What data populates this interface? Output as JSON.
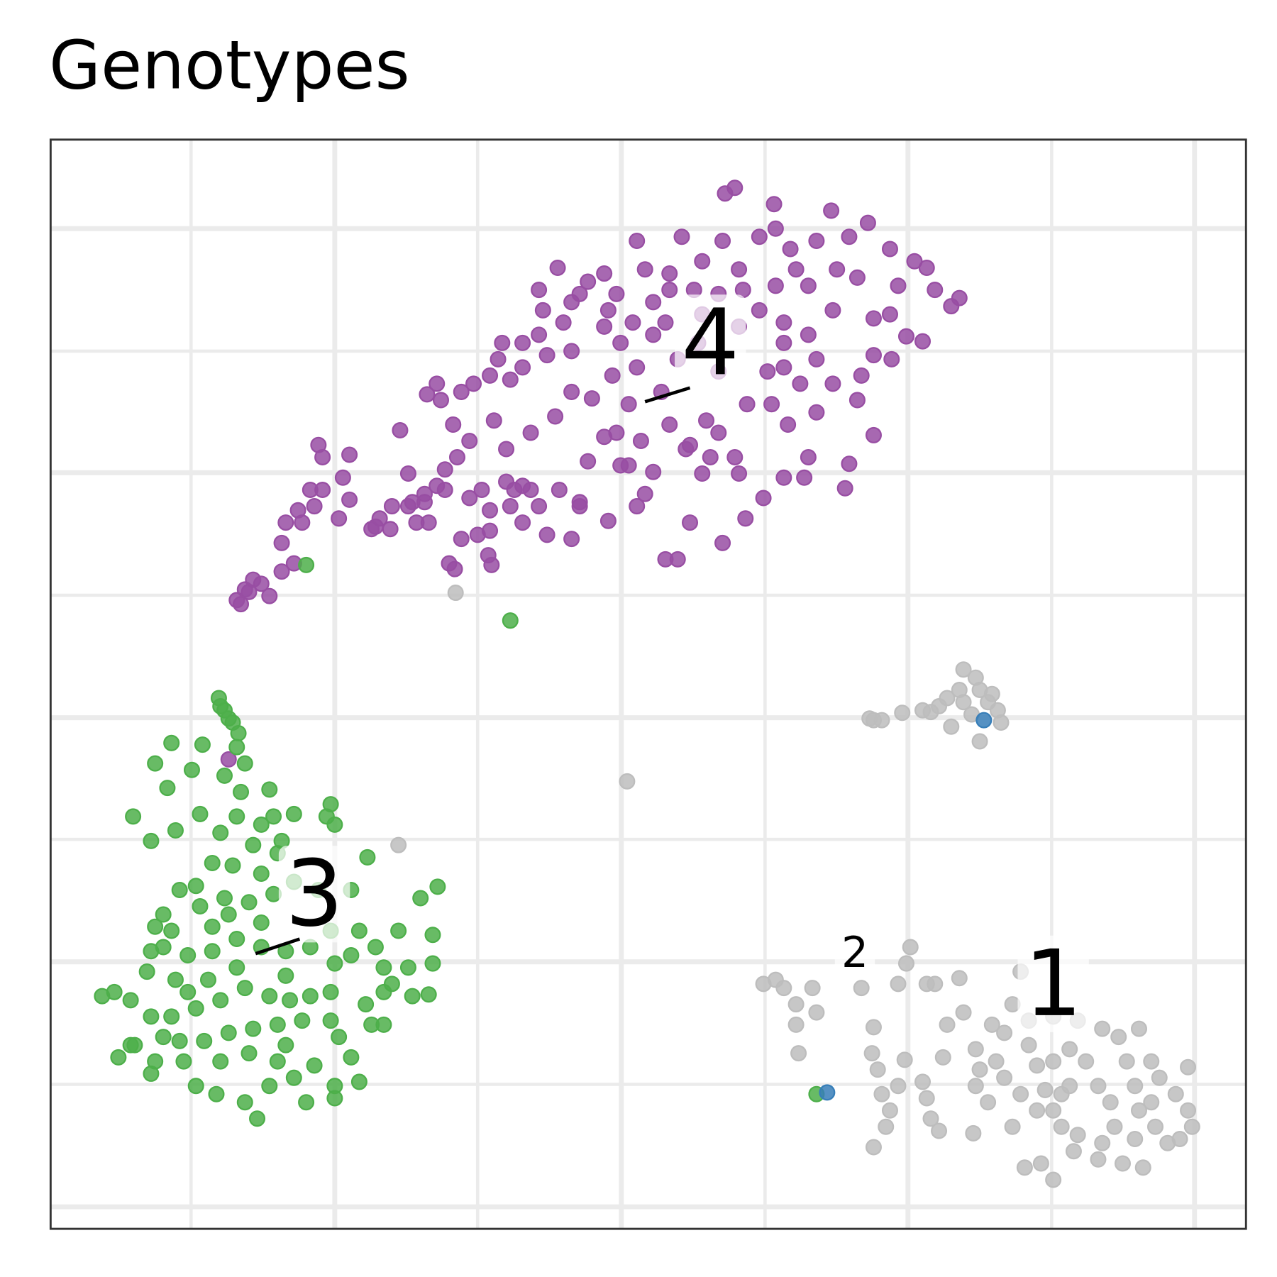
{
  "chart_data": {
    "type": "scatter",
    "title": "Genotypes",
    "xlim": [
      0.62,
      15.26
    ],
    "ylim": [
      0,
      13.34
    ],
    "xticks": [
      2.34,
      4.1,
      5.85,
      7.61,
      9.37,
      11.12,
      12.88,
      14.63
    ],
    "yticks": [
      0.27,
      1.77,
      3.27,
      4.77,
      6.26,
      7.76,
      9.26,
      10.75,
      12.25
    ],
    "grid": true,
    "series": [
      {
        "color": "#bdbdbd",
        "x": [
          10.65,
          10.8,
          11.05,
          11.3,
          11.5,
          11.65,
          11.8,
          11.95,
          12.0,
          12.15,
          12.22,
          12.26,
          12.0,
          11.8,
          11.6,
          11.4,
          11.9,
          12.1,
          11.75,
          10.7,
          5.58,
          7.68,
          4.88,
          9.35,
          9.5,
          9.6,
          9.75,
          9.95,
          10.0,
          9.75,
          9.78,
          10.55,
          11.0,
          11.1,
          11.15,
          11.35,
          11.45,
          11.75,
          10.7,
          10.68,
          10.75,
          10.8,
          10.9,
          10.85,
          10.7,
          11.0,
          11.08,
          11.3,
          11.35,
          11.5,
          11.4,
          11.55,
          11.6,
          11.8,
          11.95,
          12.0,
          11.95,
          12.1,
          11.92,
          12.15,
          12.4,
          12.5,
          12.6,
          12.7,
          12.8,
          12.9,
          13.0,
          13.2,
          13.15,
          12.9,
          12.75,
          12.55,
          12.9,
          13.1,
          13.3,
          13.45,
          13.6,
          13.65,
          13.5,
          13.45,
          13.75,
          14.0,
          13.9,
          13.95,
          13.9,
          13.8,
          13.7,
          13.95,
          14.1,
          14.2,
          14.4,
          14.55,
          14.6,
          14.45,
          14.3,
          14.15,
          14.1,
          14.55,
          13.5,
          13.2,
          12.9,
          12.6,
          12.3,
          12.3,
          12.5,
          12.7,
          12.4,
          13.0,
          13.1,
          12.2
        ],
        "values": [
          6.25,
          6.23,
          6.32,
          6.35,
          6.4,
          6.15,
          6.85,
          6.75,
          6.6,
          6.55,
          6.35,
          6.2,
          5.97,
          6.45,
          6.5,
          6.33,
          6.3,
          6.45,
          6.6,
          6.23,
          7.79,
          5.48,
          4.7,
          3.0,
          3.05,
          2.95,
          2.75,
          2.95,
          2.65,
          2.5,
          2.15,
          2.95,
          3.0,
          3.25,
          3.45,
          3.0,
          3.0,
          3.07,
          2.47,
          2.15,
          1.95,
          1.65,
          1.45,
          1.25,
          1.0,
          1.75,
          2.07,
          1.8,
          1.6,
          1.2,
          1.35,
          2.1,
          2.5,
          2.65,
          2.2,
          1.95,
          1.75,
          1.55,
          1.17,
          2.5,
          2.75,
          3.15,
          2.25,
          2.0,
          1.7,
          1.45,
          1.25,
          1.15,
          0.95,
          0.6,
          0.8,
          0.75,
          2.05,
          2.2,
          2.05,
          1.75,
          1.55,
          1.25,
          1.05,
          0.85,
          0.8,
          0.75,
          1.1,
          1.45,
          1.75,
          2.05,
          2.35,
          2.45,
          2.05,
          1.85,
          1.65,
          1.45,
          1.25,
          1.1,
          1.05,
          1.25,
          1.55,
          1.98,
          2.45,
          2.55,
          2.6,
          2.55,
          2.4,
          1.85,
          1.65,
          1.45,
          1.25,
          1.65,
          1.75,
          2.05
        ]
      },
      {
        "color": "#984ea3",
        "x": [
          2.95,
          3.05,
          3.2,
          2.9,
          3.3,
          3.45,
          3.6,
          3.45,
          3.7,
          3.85,
          3.95,
          3.95,
          3.9,
          4.28,
          4.2,
          4.28,
          4.15,
          4.6,
          4.8,
          5.0,
          5.2,
          5.35,
          5.45,
          5.55,
          5.4,
          5.23,
          5.35,
          5.65,
          5.8,
          6.0,
          6.25,
          6.1,
          6.15,
          6.4,
          6.6,
          6.65,
          6.6,
          6.83,
          7.0,
          7.2,
          7.4,
          7.55,
          7.8,
          7.9,
          8.0,
          8.2,
          8.35,
          8.6,
          8.85,
          9.0,
          8.88,
          9.05,
          9.3,
          9.48,
          9.5,
          9.68,
          9.9,
          10.0,
          10.18,
          10.4,
          10.63,
          10.9,
          11.2,
          11.35,
          11.45,
          11.65,
          11.75,
          11.0,
          10.7,
          10.9,
          11.1,
          11.3,
          10.92,
          10.7,
          10.55,
          10.5,
          10.7,
          10.4,
          10.35,
          10.0,
          9.9,
          9.65,
          9.45,
          9.6,
          9.4,
          9.15,
          9.05,
          9.35,
          9.13,
          8.85,
          8.45,
          8.3,
          8.15,
          8.0,
          7.9,
          7.7,
          7.55,
          7.4,
          7.2,
          7.1,
          7.0,
          6.7,
          6.6,
          6.4,
          6.3,
          6.0,
          5.98,
          6.02,
          5.65,
          5.5,
          5.57,
          5.25,
          5.05,
          4.9,
          5.0,
          5.6,
          5.75,
          6.05,
          6.2,
          6.5,
          6.8,
          7.0,
          7.25,
          7.5,
          7.7,
          7.85,
          8.1,
          8.3,
          8.55,
          8.8,
          8.65,
          8.45,
          8.2,
          7.8,
          8.0,
          7.6,
          7.4,
          7.0,
          6.7,
          6.4,
          6.9,
          7.1,
          7.45,
          7.75,
          8.15,
          8.6,
          9.05,
          9.3,
          9.6,
          9.9,
          10.2,
          10.0,
          10.2,
          9.8,
          9.6,
          10.5,
          10.25,
          9.75,
          9.5,
          9.1,
          8.8,
          8.5,
          8.2,
          8.8,
          9.0,
          8.7,
          9.6,
          9.85,
          8.4,
          8.6,
          7.6,
          7.8,
          7.45,
          6.4,
          6.2,
          5.9,
          5.75,
          5.45,
          5.2,
          4.65,
          4.55,
          4.78,
          5.1,
          5.85,
          6.0,
          6.25,
          6.5,
          6.85,
          7.1,
          3.5,
          3.65,
          3.8,
          3.1,
          3.0,
          2.8
        ],
        "values": [
          7.65,
          7.8,
          7.9,
          7.7,
          7.75,
          8.05,
          8.15,
          8.4,
          8.65,
          8.85,
          9.05,
          9.45,
          9.6,
          9.48,
          9.2,
          8.93,
          8.7,
          8.6,
          8.85,
          8.85,
          9.0,
          9.1,
          9.3,
          9.85,
          10.15,
          10.22,
          10.35,
          10.25,
          10.35,
          10.45,
          10.4,
          10.65,
          10.85,
          10.85,
          10.95,
          11.25,
          11.5,
          11.77,
          11.35,
          11.6,
          11.7,
          11.45,
          12.1,
          11.75,
          11.35,
          11.7,
          12.15,
          11.85,
          12.1,
          12.75,
          12.68,
          11.75,
          12.15,
          12.55,
          12.25,
          12.0,
          11.55,
          12.1,
          12.47,
          12.15,
          12.32,
          12.0,
          11.85,
          11.77,
          11.5,
          11.3,
          11.4,
          11.55,
          11.15,
          11.2,
          10.93,
          10.87,
          10.65,
          10.7,
          10.45,
          10.15,
          9.72,
          9.37,
          9.07,
          10.0,
          9.45,
          9.85,
          10.1,
          10.85,
          10.5,
          10.1,
          9.25,
          8.95,
          8.7,
          8.4,
          8.65,
          8.2,
          8.2,
          9.27,
          9.0,
          9.35,
          9.75,
          9.7,
          9.4,
          8.85,
          8.45,
          8.5,
          8.85,
          8.65,
          9.05,
          8.55,
          8.25,
          8.13,
          8.45,
          8.15,
          8.08,
          8.65,
          8.9,
          9.78,
          9.25,
          9.45,
          9.65,
          9.9,
          9.55,
          9.75,
          9.95,
          10.25,
          10.17,
          10.45,
          10.1,
          9.65,
          10.25,
          10.65,
          10.85,
          10.5,
          9.9,
          9.6,
          9.85,
          10.55,
          10.95,
          10.85,
          11.05,
          10.75,
          10.7,
          10.55,
          11.1,
          11.45,
          11.25,
          11.1,
          11.1,
          11.2,
          11.05,
          11.25,
          11.1,
          10.95,
          11.25,
          10.65,
          10.35,
          10.35,
          10.55,
          11.65,
          11.75,
          11.75,
          11.55,
          11.5,
          11.45,
          11.5,
          11.5,
          9.75,
          9.45,
          9.45,
          9.2,
          9.2,
          9.55,
          9.25,
          9.35,
          8.85,
          8.67,
          9.1,
          9.15,
          9.05,
          8.95,
          9.05,
          8.9,
          8.7,
          8.57,
          8.57,
          8.65,
          8.5,
          8.8,
          8.85,
          9.05,
          9.05,
          8.9,
          8.65,
          8.8,
          9.05,
          7.95,
          7.83,
          5.75
        ]
      },
      {
        "color": "#4daf4a",
        "x": [
          3.75,
          6.25,
          2.68,
          2.75,
          2.85,
          2.92,
          2.9,
          2.8,
          2.7,
          2.48,
          2.1,
          1.9,
          2.05,
          2.35,
          2.75,
          3.0,
          2.95,
          3.3,
          2.9,
          2.45,
          2.15,
          1.85,
          1.63,
          2.7,
          3.2,
          3.35,
          3.6,
          4.05,
          4.1,
          4.0,
          3.1,
          3.4,
          3.45,
          2.85,
          2.6,
          2.4,
          2.2,
          2.0,
          1.9,
          2.1,
          2.45,
          2.75,
          3.05,
          3.35,
          3.2,
          3.6,
          3.9,
          4.3,
          4.5,
          4.88,
          5.15,
          5.36,
          5.3,
          5.3,
          5.0,
          4.7,
          4.6,
          4.3,
          4.1,
          4.4,
          4.05,
          3.8,
          3.5,
          3.2,
          2.9,
          2.6,
          2.3,
          2.0,
          1.85,
          1.8,
          1.6,
          1.4,
          1.25,
          1.45,
          1.6,
          1.85,
          2.1,
          2.4,
          2.7,
          3.0,
          3.3,
          3.55,
          3.8,
          4.05,
          4.05,
          3.7,
          3.4,
          3.1,
          2.8,
          2.5,
          2.2,
          1.9,
          1.85,
          2.25,
          2.4,
          2.65,
          3.0,
          3.15,
          3.3,
          3.6,
          3.75,
          3.85,
          4.1,
          4.1,
          4.4,
          4.3,
          4.15,
          4.55,
          4.7,
          4.7,
          5.05,
          5.25,
          4.8,
          4.48,
          3.5,
          2.9,
          2.55,
          2.3,
          3.05,
          3.4,
          2.7,
          2.0,
          2.15,
          1.65,
          3.5,
          2.8,
          3.2,
          2.6,
          10.0
        ],
        "values": [
          8.13,
          7.45,
          6.5,
          6.35,
          6.2,
          6.07,
          5.9,
          6.25,
          6.4,
          5.93,
          5.95,
          5.7,
          5.4,
          5.62,
          5.55,
          5.7,
          5.35,
          5.38,
          5.05,
          5.08,
          4.88,
          4.75,
          5.05,
          4.85,
          4.95,
          5.05,
          5.08,
          5.2,
          4.95,
          5.05,
          4.7,
          4.6,
          4.75,
          4.45,
          4.48,
          4.2,
          4.15,
          3.85,
          3.7,
          3.65,
          3.95,
          4.05,
          4.0,
          4.1,
          4.35,
          4.25,
          4.15,
          4.15,
          4.55,
          3.65,
          4.05,
          4.19,
          3.6,
          3.25,
          3.2,
          3.2,
          3.45,
          3.35,
          3.25,
          3.65,
          3.65,
          3.45,
          3.4,
          3.45,
          3.55,
          3.4,
          3.35,
          3.45,
          3.4,
          3.15,
          2.8,
          2.9,
          2.85,
          2.1,
          2.25,
          2.6,
          2.6,
          2.7,
          2.8,
          2.95,
          2.85,
          2.8,
          2.85,
          2.9,
          2.55,
          2.55,
          2.5,
          2.45,
          2.4,
          2.3,
          2.3,
          2.05,
          1.9,
          2.05,
          1.75,
          1.65,
          1.55,
          1.35,
          1.75,
          1.85,
          1.55,
          2.0,
          1.75,
          1.6,
          1.8,
          2.1,
          2.35,
          2.5,
          2.5,
          2.9,
          2.85,
          2.87,
          3.0,
          2.75,
          3.1,
          3.2,
          3.05,
          2.9,
          2.15,
          2.05,
          2.05,
          2.35,
          3.05,
          2.25,
          2.25,
          3.85,
          3.75,
          3.7,
          1.65
        ]
      },
      {
        "color": "#377eb8",
        "x": [
          12.05,
          10.13
        ],
        "values": [
          6.23,
          1.67
        ]
      }
    ],
    "annotations": [
      {
        "text": "1",
        "x": 12.9,
        "y": 3.0
      },
      {
        "text": "2",
        "x": 10.47,
        "y": 3.38
      },
      {
        "text": "3",
        "x": 3.85,
        "y": 4.1
      },
      {
        "text": "4",
        "x": 8.7,
        "y": 10.85
      }
    ]
  }
}
